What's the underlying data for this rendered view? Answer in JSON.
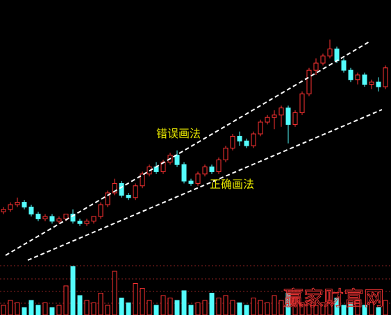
{
  "chart_data": {
    "type": "candlestick",
    "open": [
      22,
      23,
      25,
      26,
      24,
      21,
      19,
      20,
      18,
      19,
      21,
      18,
      17,
      18,
      20,
      25,
      30,
      34,
      29,
      28,
      33,
      38,
      41,
      39,
      43,
      46,
      42,
      35,
      34,
      38,
      41,
      39,
      44,
      49,
      54,
      52,
      50,
      55,
      60,
      62,
      63,
      66,
      59,
      64,
      72,
      82,
      85,
      88,
      91,
      86,
      82,
      78,
      80,
      76,
      77,
      75
    ],
    "high": [
      24,
      26,
      28,
      27,
      25,
      22,
      21,
      21,
      20,
      21,
      23,
      19,
      19,
      20,
      26,
      31,
      36,
      35,
      30,
      34,
      39,
      42,
      43,
      44,
      47,
      48,
      43,
      36,
      39,
      42,
      42,
      45,
      50,
      55,
      56,
      53,
      56,
      61,
      63,
      65,
      67,
      67,
      65,
      73,
      83,
      87,
      89,
      95,
      92,
      87,
      83,
      81,
      81,
      78,
      79,
      84
    ],
    "low": [
      21,
      22,
      24,
      23,
      20,
      18,
      18,
      17,
      17,
      18,
      17,
      16,
      16,
      17,
      19,
      24,
      29,
      28,
      27,
      27,
      32,
      37,
      38,
      38,
      42,
      41,
      34,
      33,
      33,
      37,
      38,
      38,
      43,
      48,
      50,
      49,
      49,
      54,
      59,
      57,
      58,
      51,
      58,
      63,
      71,
      80,
      84,
      87,
      85,
      81,
      77,
      76,
      75,
      74,
      73,
      74
    ],
    "close": [
      23,
      25,
      26,
      24,
      21,
      19,
      20,
      18,
      19,
      21,
      18,
      17,
      18,
      20,
      25,
      30,
      34,
      29,
      28,
      33,
      38,
      41,
      39,
      43,
      46,
      42,
      35,
      34,
      38,
      41,
      39,
      44,
      49,
      54,
      52,
      50,
      55,
      60,
      62,
      63,
      66,
      59,
      64,
      72,
      82,
      85,
      88,
      91,
      86,
      82,
      78,
      80,
      76,
      77,
      75,
      83
    ],
    "volume": [
      20,
      30,
      25,
      15,
      30,
      20,
      25,
      15,
      20,
      60,
      100,
      40,
      30,
      25,
      45,
      20,
      90,
      35,
      25,
      65,
      55,
      30,
      20,
      40,
      35,
      30,
      50,
      20,
      25,
      30,
      45,
      35,
      40,
      30,
      25,
      20,
      35,
      30,
      25,
      40,
      30,
      45,
      35,
      25,
      30,
      20,
      25,
      30,
      35,
      20,
      25,
      30,
      20,
      25,
      15,
      30
    ],
    "ylim": [
      0,
      100
    ],
    "y2lim": [
      0,
      100
    ],
    "up_color": "#ff3232",
    "down_color": "#54fcfc",
    "annotations": [
      "错误画法",
      "正确画法"
    ],
    "watermark": "赢家财富网"
  }
}
